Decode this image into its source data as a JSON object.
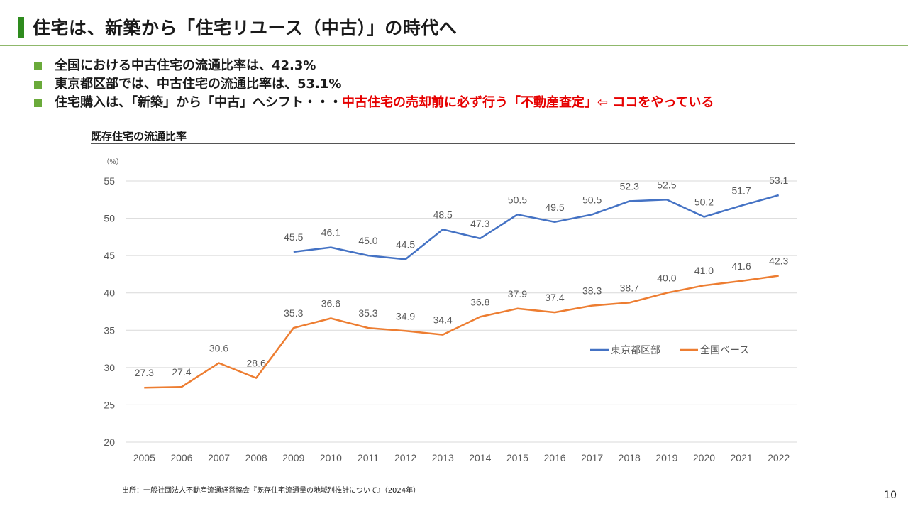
{
  "title": "住宅は、新築から「住宅リユース（中古）」の時代へ",
  "bullets": [
    {
      "text": "全国における中古住宅の流通比率は、42.3%"
    },
    {
      "text": "東京都区部では、中古住宅の流通比率は、53.1%"
    },
    {
      "text": "住宅購入は、「新築」から「中古」へシフト・・・",
      "highlight": "中古住宅の売却前に必ず行う「不動産査定」⇦ ココをやっている"
    }
  ],
  "colors": {
    "accent": "#2e8b1e",
    "bullet": "#6aaa3a",
    "highlight": "#e60000"
  },
  "chart_data": {
    "type": "line",
    "title": "既存住宅の流通比率",
    "ylabel": "（%）",
    "xlabel": "",
    "ylim": [
      20,
      55
    ],
    "yticks": [
      20,
      25,
      30,
      35,
      40,
      45,
      50,
      55
    ],
    "categories": [
      "2005",
      "2006",
      "2007",
      "2008",
      "2009",
      "2010",
      "2011",
      "2012",
      "2013",
      "2014",
      "2015",
      "2016",
      "2017",
      "2018",
      "2019",
      "2020",
      "2021",
      "2022"
    ],
    "series": [
      {
        "name": "東京都区部",
        "color": "#4472c4",
        "values": [
          null,
          null,
          null,
          null,
          45.5,
          46.1,
          45.0,
          44.5,
          48.5,
          47.3,
          50.5,
          49.5,
          50.5,
          52.3,
          52.5,
          50.2,
          51.7,
          53.1
        ]
      },
      {
        "name": "全国ベース",
        "color": "#ed7d31",
        "values": [
          27.3,
          27.4,
          30.6,
          28.6,
          35.3,
          36.6,
          35.3,
          34.9,
          34.4,
          36.8,
          37.9,
          37.4,
          38.3,
          38.7,
          40.0,
          41.0,
          41.6,
          42.3
        ]
      }
    ],
    "grid": true,
    "legend_position": "right"
  },
  "source": "出所：一般社団法人不動産流通経営協会『既存住宅流通量の地域別推計について』（2024年）",
  "page_number": "10"
}
